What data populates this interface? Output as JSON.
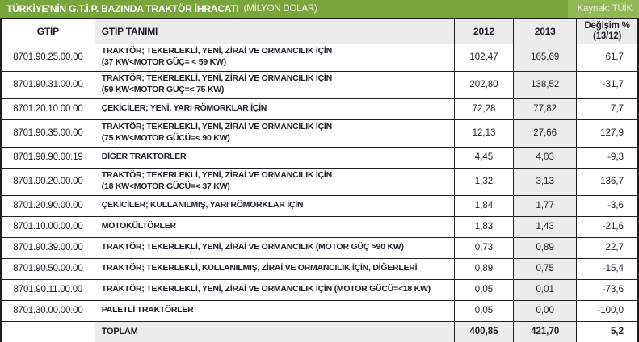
{
  "header": {
    "title": "TÜRKİYE'NİN G.T.İ.P. BAZINDA TRAKTÖR İHRACATI",
    "subtitle": "(MİLYON DOLAR)",
    "source_label": "Kaynak: TÜİK"
  },
  "colors": {
    "bar_green": "#79A63C",
    "bar_green_light": "#92B958",
    "row_shade": "#ECECEC",
    "border": "#1F1F1F",
    "text": "#20202B"
  },
  "chart_data": {
    "type": "table",
    "title": "TÜRKİYE'NİN G.T.İ.P. BAZINDA TRAKTÖR İHRACATI (MİLYON DOLAR)",
    "source": "Kaynak: TÜİK",
    "column_headers": {
      "gtip": "GTİP",
      "tanim": "GTİP TANIMI",
      "y2012": "2012",
      "y2013": "2013",
      "change_line1": "Değişim %",
      "change_line2": "(13/12)"
    },
    "rows": [
      {
        "code": "8701.90.25.00.00",
        "desc": [
          "TRAKTÖR; TEKERLEKLİ, YENİ, ZİRAİ VE ORMANCILIK İÇİN",
          "(37 KW<MOTOR GÜÇ= < 59 KW)"
        ],
        "y2012": "102,47",
        "y2013": "165,69",
        "change": "61,7"
      },
      {
        "code": "8701.90.31.00.00",
        "desc": [
          "TRAKTÖR; TEKERLEKLİ, YENİ, ZİRAİ VE ORMANCILIK İÇİN",
          "(59 KW<MOTOR GÜÇ=< 75 KW)"
        ],
        "y2012": "202,80",
        "y2013": "138,52",
        "change": "-31,7"
      },
      {
        "code": "8701.20.10.00.00",
        "desc": [
          "ÇEKİCİLER; YENİ, YARI RÖMORKLAR İÇİN"
        ],
        "y2012": "72,28",
        "y2013": "77,82",
        "change": "7,7"
      },
      {
        "code": "8701.90.35.00.00",
        "desc": [
          "TRAKTÖR; TEKERLEKLİ, YENİ, ZİRAİ VE ORMANCILIK İÇİN",
          "(75 KW<MOTOR GÜCÜ=< 90 KW)"
        ],
        "y2012": "12,13",
        "y2013": "27,66",
        "change": "127,9"
      },
      {
        "code": "8701.90.90.00.19",
        "desc": [
          "DİĞER TRAKTÖRLER"
        ],
        "y2012": "4,45",
        "y2013": "4,03",
        "change": "-9,3"
      },
      {
        "code": "8701.90.20.00.00",
        "desc": [
          "TRAKTÖR; TEKERLEKLİ, YENİ, ZİRAİ VE ORMANCILIK İÇİN",
          "(18 KW<MOTOR GÜCÜ=< 37 KW)"
        ],
        "y2012": "1,32",
        "y2013": "3,13",
        "change": "136,7"
      },
      {
        "code": "8701.20.90.00.00",
        "desc": [
          "ÇEKİCİLER; KULLANILMIŞ, YARI RÖMORKLAR İÇİN"
        ],
        "y2012": "1,84",
        "y2013": "1,77",
        "change": "-3,6"
      },
      {
        "code": "8701.10.00.00.00",
        "desc": [
          "MOTOKÜLTÖRLER"
        ],
        "y2012": "1,83",
        "y2013": "1,43",
        "change": "-21,6"
      },
      {
        "code": "8701.90.39.00.00",
        "desc": [
          "TRAKTÖR; TEKERLEKLİ, YENİ, ZİRAİ VE ORMANCILIK (MOTOR GÜÇ >90 KW)"
        ],
        "y2012": "0,73",
        "y2013": "0,89",
        "change": "22,7"
      },
      {
        "code": "8701.90.50.00.00",
        "desc": [
          "TRAKTÖR; TEKERLEKLİ, KULLANILMIŞ, ZİRAİ VE ORMANCILIK İÇİN, DİĞERLERİ"
        ],
        "y2012": "0,89",
        "y2013": "0,75",
        "change": "-15,4"
      },
      {
        "code": "8701.90.11.00.00",
        "desc": [
          "TRAKTÖR; TEKERLEKLİ, YENİ, ZİRAİ VE ORMANCILIK İÇİN (MOTOR GÜCÜ=<18 KW)"
        ],
        "y2012": "0,05",
        "y2013": "0,01",
        "change": "-73,6"
      },
      {
        "code": "8701.30.00.00.00",
        "desc": [
          "PALETLİ TRAKTÖRLER"
        ],
        "y2012": "0,05",
        "y2013": "0,00",
        "change": "-100,0"
      }
    ],
    "total_row": {
      "label": "TOPLAM",
      "y2012": "400,85",
      "y2013": "421,70",
      "change": "5,2"
    }
  }
}
